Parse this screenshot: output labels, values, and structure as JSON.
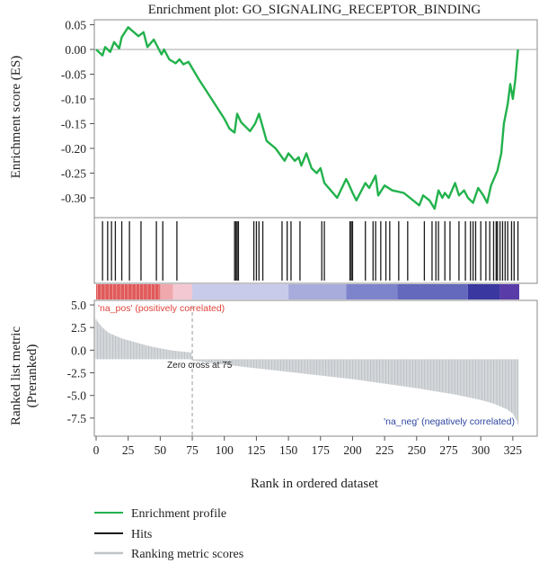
{
  "chart_data": [
    {
      "type": "line",
      "title": "Enrichment plot: GO_SIGNALING_RECEPTOR_BINDING",
      "ylabel": "Enrichment score (ES)",
      "ylim": [
        -0.34,
        0.06
      ],
      "y_ticks": [
        "0.05",
        "0.00",
        "-0.05",
        "-0.10",
        "-0.15",
        "-0.20",
        "-0.25",
        "-0.30"
      ],
      "y_tick_values": [
        0.05,
        0.0,
        -0.05,
        -0.1,
        -0.15,
        -0.2,
        -0.25,
        -0.3
      ],
      "series": [
        {
          "name": "Enrichment profile",
          "color": "#22b24c",
          "x": [
            0,
            5,
            7,
            11,
            14,
            18,
            20,
            25,
            33,
            37,
            40,
            45,
            51,
            53,
            57,
            62,
            65,
            68,
            72,
            80,
            90,
            100,
            104,
            108,
            110,
            113,
            120,
            124,
            127,
            133,
            140,
            147,
            150,
            155,
            158,
            160,
            164,
            168,
            172,
            175,
            178,
            183,
            188,
            195,
            197,
            200,
            203,
            210,
            213,
            218,
            220,
            225,
            231,
            240,
            252,
            255,
            260,
            264,
            267,
            270,
            272,
            275,
            280,
            283,
            287,
            290,
            294,
            298,
            302,
            305,
            308,
            313,
            316,
            318,
            321,
            323,
            325,
            327,
            329
          ],
          "y": [
            0.0,
            -0.012,
            0.005,
            -0.005,
            0.015,
            0.002,
            0.025,
            0.045,
            0.027,
            0.035,
            0.005,
            0.02,
            -0.01,
            0.0,
            -0.02,
            -0.028,
            -0.02,
            -0.03,
            -0.025,
            -0.06,
            -0.1,
            -0.14,
            -0.16,
            -0.168,
            -0.13,
            -0.147,
            -0.165,
            -0.15,
            -0.13,
            -0.185,
            -0.2,
            -0.225,
            -0.21,
            -0.225,
            -0.218,
            -0.235,
            -0.21,
            -0.24,
            -0.25,
            -0.24,
            -0.27,
            -0.285,
            -0.3,
            -0.262,
            -0.272,
            -0.29,
            -0.305,
            -0.27,
            -0.28,
            -0.255,
            -0.295,
            -0.275,
            -0.285,
            -0.29,
            -0.315,
            -0.295,
            -0.305,
            -0.322,
            -0.285,
            -0.3,
            -0.29,
            -0.3,
            -0.27,
            -0.295,
            -0.285,
            -0.3,
            -0.31,
            -0.28,
            -0.295,
            -0.31,
            -0.275,
            -0.245,
            -0.21,
            -0.15,
            -0.11,
            -0.07,
            -0.1,
            -0.06,
            0.0
          ]
        }
      ],
      "hits_name": "Hits",
      "hits_color": "#1a1a1a",
      "hits": [
        5,
        9,
        12,
        15,
        20,
        26,
        35,
        47,
        52,
        63,
        108,
        109,
        110,
        111,
        123,
        125,
        127,
        130,
        145,
        149,
        152,
        159,
        176,
        178,
        198,
        199,
        200,
        210,
        216,
        218,
        222,
        226,
        229,
        236,
        243,
        256,
        262,
        265,
        267,
        272,
        276,
        283,
        288,
        292,
        294,
        296,
        300,
        304,
        307,
        310,
        312,
        313,
        315,
        317,
        319,
        321,
        324,
        326,
        329
      ],
      "heat_band": [
        {
          "from": 0,
          "to": 50,
          "color": "#e05a5a"
        },
        {
          "from": 50,
          "to": 60,
          "color": "#f0a8ad"
        },
        {
          "from": 60,
          "to": 75,
          "color": "#f4c8d2"
        },
        {
          "from": 75,
          "to": 150,
          "color": "#c8cbea"
        },
        {
          "from": 150,
          "to": 195,
          "color": "#a8acdc"
        },
        {
          "from": 195,
          "to": 235,
          "color": "#7e84cc"
        },
        {
          "from": 235,
          "to": 290,
          "color": "#6469bd"
        },
        {
          "from": 290,
          "to": 315,
          "color": "#3a37a0"
        },
        {
          "from": 315,
          "to": 330,
          "color": "#5a3ca8"
        }
      ]
    },
    {
      "type": "bar",
      "ylabel": [
        "Ranked list metric",
        "(Preranked)"
      ],
      "xlabel": "Rank in ordered dataset",
      "xlim": [
        0,
        330
      ],
      "ylim": [
        -9.5,
        5.5
      ],
      "x_ticks": [
        "0",
        "25",
        "50",
        "75",
        "100",
        "125",
        "150",
        "175",
        "200",
        "225",
        "250",
        "275",
        "300",
        "325"
      ],
      "x_tick_values": [
        0,
        25,
        50,
        75,
        100,
        125,
        150,
        175,
        200,
        225,
        250,
        275,
        300,
        325
      ],
      "y_ticks": [
        "5.0",
        "2.5",
        "0.0",
        "-2.5",
        "-5.0",
        "-7.5"
      ],
      "y_tick_values": [
        5,
        2.5,
        0,
        -2.5,
        -5,
        -7.5
      ],
      "series": [
        {
          "name": "Ranking metric scores",
          "color": "#bfc3c7",
          "baseline": -1.0,
          "profile_x": [
            0,
            2,
            5,
            10,
            20,
            30,
            40,
            50,
            60,
            74,
            75,
            100,
            150,
            200,
            250,
            280,
            300,
            310,
            320,
            325,
            328,
            330
          ],
          "profile_y": [
            3.4,
            3.0,
            2.5,
            1.9,
            1.3,
            0.9,
            0.5,
            0.2,
            -0.05,
            -0.25,
            -1.15,
            -1.6,
            -2.4,
            -3.2,
            -4.2,
            -4.9,
            -5.5,
            -5.9,
            -6.5,
            -7.0,
            -7.8,
            -8.6
          ]
        }
      ],
      "annotations": {
        "zero_cross": "Zero cross at 75",
        "zero_cross_x": 75,
        "pos_label": "'na_pos' (positively correlated)",
        "pos_color": "#e0443c",
        "neg_label": "'na_neg' (negatively correlated)",
        "neg_color": "#2c44a0"
      }
    }
  ],
  "legend": [
    {
      "label": "Enrichment profile",
      "color": "#22b24c"
    },
    {
      "label": "Hits",
      "color": "#1a1a1a"
    },
    {
      "label": "Ranking metric scores",
      "color": "#bfc3c7"
    }
  ]
}
